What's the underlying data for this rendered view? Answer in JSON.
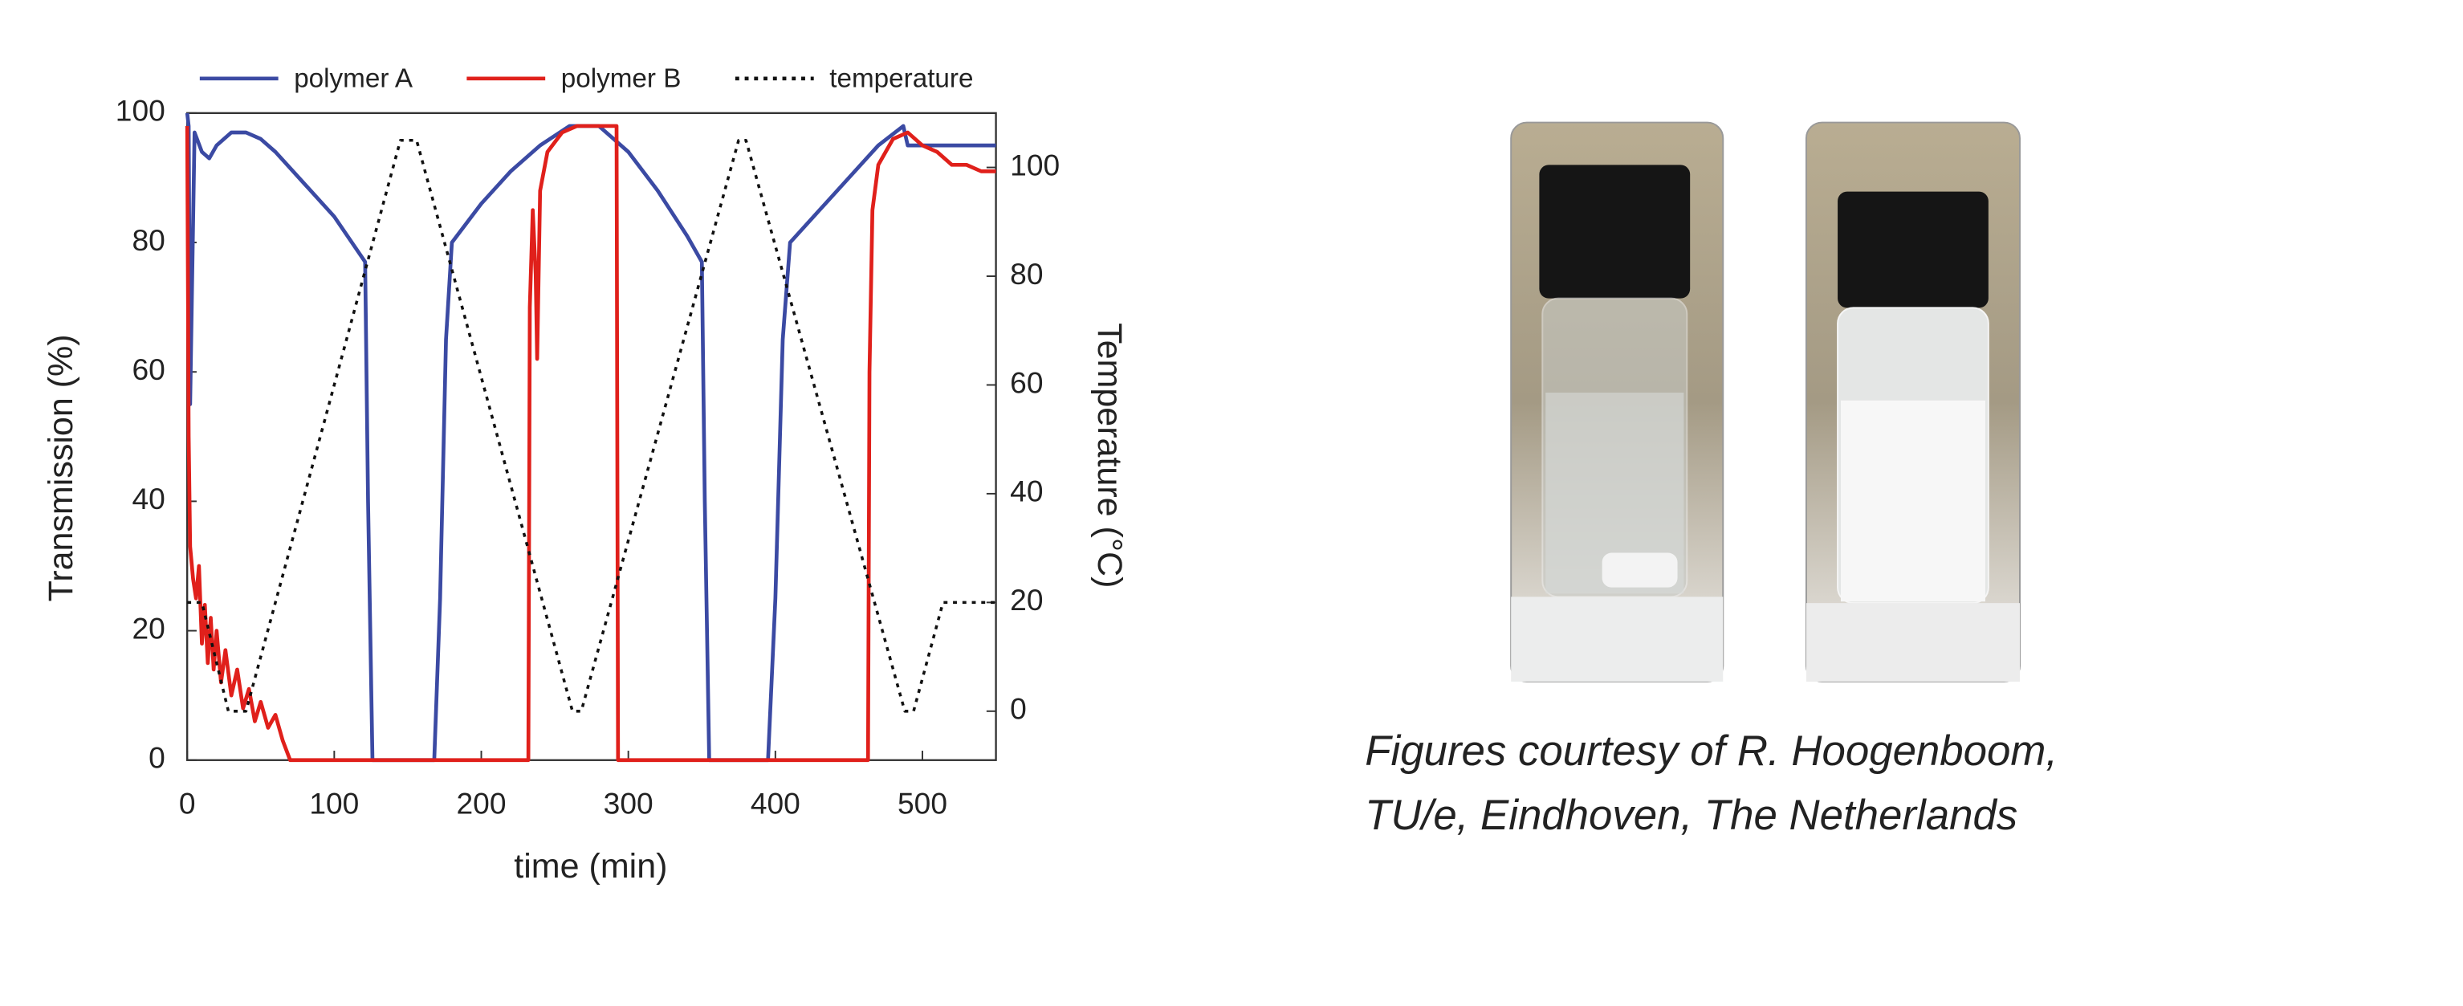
{
  "chart_data": {
    "type": "line",
    "xlabel": "time (min)",
    "ylabel": "Transmission (%)",
    "y2label": "Temperature (°C)",
    "xlim": [
      0,
      550
    ],
    "xticks": [
      0,
      100,
      200,
      300,
      400,
      500
    ],
    "ylim": [
      0,
      100
    ],
    "yticks": [
      0,
      20,
      40,
      60,
      80,
      100
    ],
    "y2lim": [
      -9,
      110
    ],
    "y2ticks": [
      0,
      20,
      40,
      60,
      80,
      100
    ],
    "legend": "top",
    "series": [
      {
        "name": "polymer A",
        "color": "#3b4aa3",
        "dash": "solid",
        "x": [
          0,
          1,
          2,
          5,
          10,
          15,
          20,
          30,
          40,
          50,
          60,
          80,
          100,
          121,
          123,
          126,
          168,
          172,
          176,
          180,
          200,
          220,
          240,
          260,
          270,
          280,
          300,
          320,
          340,
          350,
          352,
          355,
          395,
          400,
          405,
          410,
          430,
          450,
          470,
          487,
          490,
          495,
          550
        ],
        "values": [
          100,
          98,
          55,
          97,
          94,
          93,
          95,
          97,
          97,
          96,
          94,
          89,
          84,
          77,
          40,
          0,
          0,
          25,
          65,
          80,
          86,
          91,
          95,
          98,
          98,
          98,
          94,
          88,
          81,
          77,
          40,
          0,
          0,
          25,
          65,
          80,
          85,
          90,
          95,
          98,
          95,
          95,
          95
        ]
      },
      {
        "name": "polymer B",
        "color": "#e0201b",
        "dash": "solid",
        "x": [
          0,
          1,
          2,
          4,
          6,
          8,
          10,
          12,
          14,
          16,
          18,
          20,
          23,
          26,
          30,
          34,
          38,
          42,
          46,
          50,
          55,
          60,
          65,
          70,
          232,
          233,
          235,
          237,
          238,
          240,
          245,
          255,
          265,
          290,
          292,
          293,
          463,
          464,
          466,
          470,
          480,
          490,
          500,
          510,
          520,
          530,
          540,
          550
        ],
        "values": [
          98,
          50,
          33,
          28,
          25,
          30,
          18,
          24,
          15,
          22,
          14,
          20,
          12,
          17,
          10,
          14,
          8,
          11,
          6,
          9,
          5,
          7,
          3,
          0,
          0,
          70,
          85,
          75,
          62,
          88,
          94,
          97,
          98,
          98,
          98,
          0,
          0,
          60,
          85,
          92,
          96,
          97,
          95,
          94,
          92,
          92,
          91,
          91
        ]
      },
      {
        "name": "temperature",
        "color": "#111111",
        "dash": "dotted",
        "axis": "y2",
        "x": [
          0,
          10,
          28,
          40,
          145,
          156,
          262,
          268,
          375,
          380,
          488,
          494,
          514,
          550
        ],
        "values": [
          20,
          20,
          0,
          0,
          105,
          105,
          0,
          0,
          105,
          105,
          0,
          0,
          20,
          20
        ]
      }
    ]
  },
  "figure": {
    "caption": [
      "Figures courtesy of R. Hoogenboom,",
      "TU/e, Eindhoven, The Netherlands"
    ]
  }
}
